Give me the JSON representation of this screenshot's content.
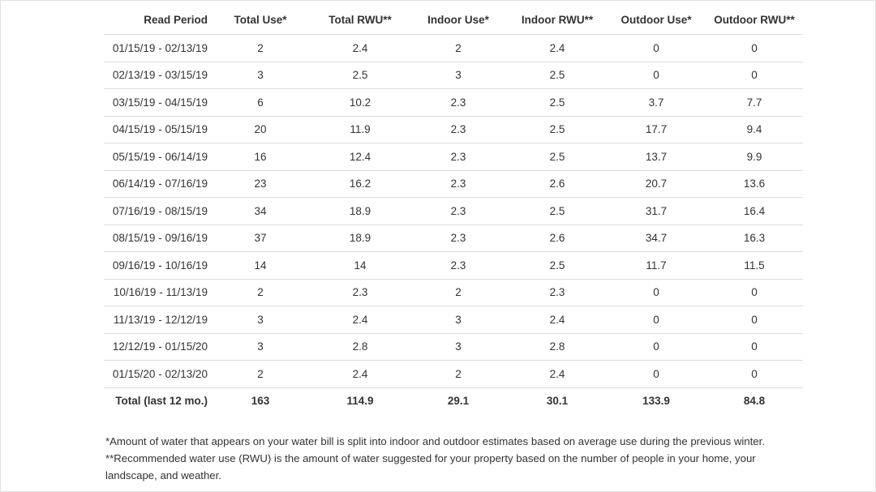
{
  "table": {
    "headers": [
      "Read Period",
      "Total Use*",
      "Total RWU**",
      "Indoor Use*",
      "Indoor RWU**",
      "Outdoor Use*",
      "Outdoor RWU**"
    ],
    "rows": [
      [
        "01/15/19 - 02/13/19",
        "2",
        "2.4",
        "2",
        "2.4",
        "0",
        "0"
      ],
      [
        "02/13/19 - 03/15/19",
        "3",
        "2.5",
        "3",
        "2.5",
        "0",
        "0"
      ],
      [
        "03/15/19 - 04/15/19",
        "6",
        "10.2",
        "2.3",
        "2.5",
        "3.7",
        "7.7"
      ],
      [
        "04/15/19 - 05/15/19",
        "20",
        "11.9",
        "2.3",
        "2.5",
        "17.7",
        "9.4"
      ],
      [
        "05/15/19 - 06/14/19",
        "16",
        "12.4",
        "2.3",
        "2.5",
        "13.7",
        "9.9"
      ],
      [
        "06/14/19 - 07/16/19",
        "23",
        "16.2",
        "2.3",
        "2.6",
        "20.7",
        "13.6"
      ],
      [
        "07/16/19 - 08/15/19",
        "34",
        "18.9",
        "2.3",
        "2.5",
        "31.7",
        "16.4"
      ],
      [
        "08/15/19 - 09/16/19",
        "37",
        "18.9",
        "2.3",
        "2.6",
        "34.7",
        "16.3"
      ],
      [
        "09/16/19 - 10/16/19",
        "14",
        "14",
        "2.3",
        "2.5",
        "11.7",
        "11.5"
      ],
      [
        "10/16/19 - 11/13/19",
        "2",
        "2.3",
        "2",
        "2.3",
        "0",
        "0"
      ],
      [
        "11/13/19 - 12/12/19",
        "3",
        "2.4",
        "3",
        "2.4",
        "0",
        "0"
      ],
      [
        "12/12/19 - 01/15/20",
        "3",
        "2.8",
        "3",
        "2.8",
        "0",
        "0"
      ],
      [
        "01/15/20 - 02/13/20",
        "2",
        "2.4",
        "2",
        "2.4",
        "0",
        "0"
      ]
    ],
    "total": [
      "Total (last 12 mo.)",
      "163",
      "114.9",
      "29.1",
      "30.1",
      "133.9",
      "84.8"
    ]
  },
  "footnotes": [
    "*Amount of water that appears on your water bill is split into indoor and outdoor estimates based on average use during the previous winter.",
    "**Recommended water use (RWU) is the amount of water suggested for your property based on the number of people in your home, your landscape, and weather."
  ]
}
